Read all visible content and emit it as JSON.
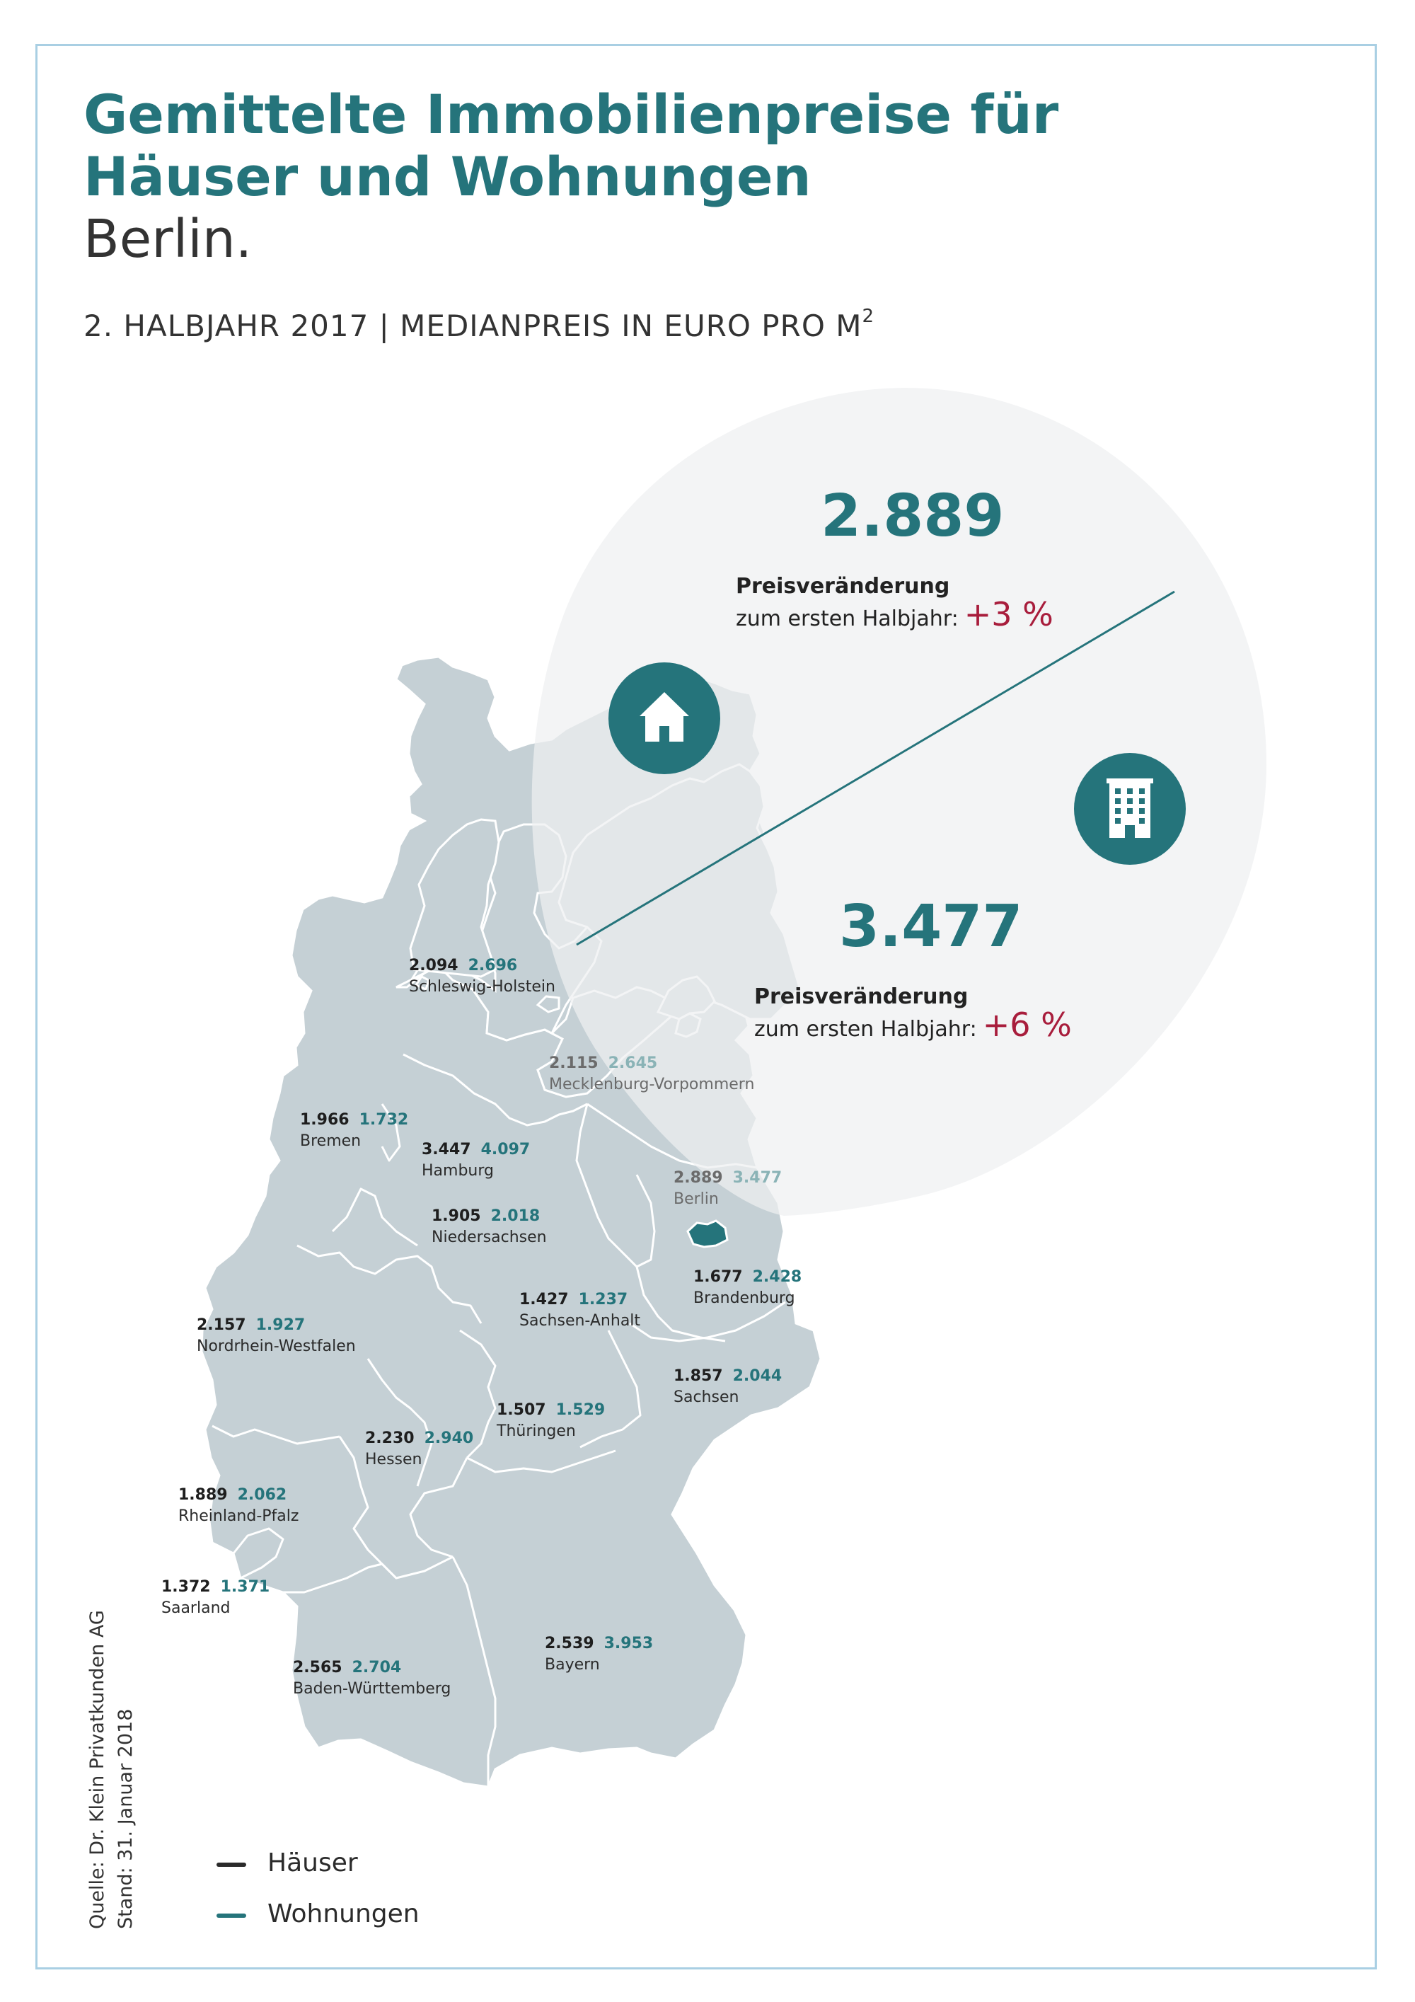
{
  "title": {
    "line1": "Gemittelte Immobilienpreise für",
    "line2": "Häuser und Wohnungen"
  },
  "city": "Berlin.",
  "subtitle": {
    "text": "2. HALBJAHR 2017 | MEDIANPREIS IN EURO PRO M",
    "superscript": "2"
  },
  "highlight": {
    "houses": {
      "value": "2.889",
      "change_label": "Preisveränderung",
      "change_sub": "zum ersten Halbjahr:",
      "change_pct": "+3 %",
      "icon": "house-icon"
    },
    "apartments": {
      "value": "3.477",
      "change_label": "Preisveränderung",
      "change_sub": "zum ersten Halbjahr:",
      "change_pct": "+6 %",
      "icon": "apartment-building-icon"
    }
  },
  "regions": [
    {
      "id": "schleswig-holstein",
      "name": "Schleswig-Holstein",
      "houses": "2.094",
      "apartments": "2.696"
    },
    {
      "id": "mecklenburg-vorpommern",
      "name": "Mecklenburg-Vorpommern",
      "houses": "2.115",
      "apartments": "2.645"
    },
    {
      "id": "bremen",
      "name": "Bremen",
      "houses": "1.966",
      "apartments": "1.732"
    },
    {
      "id": "hamburg",
      "name": "Hamburg",
      "houses": "3.447",
      "apartments": "4.097"
    },
    {
      "id": "berlin",
      "name": "Berlin",
      "houses": "2.889",
      "apartments": "3.477"
    },
    {
      "id": "niedersachsen",
      "name": "Niedersachsen",
      "houses": "1.905",
      "apartments": "2.018"
    },
    {
      "id": "brandenburg",
      "name": "Brandenburg",
      "houses": "1.677",
      "apartments": "2.428"
    },
    {
      "id": "sachsen-anhalt",
      "name": "Sachsen-Anhalt",
      "houses": "1.427",
      "apartments": "1.237"
    },
    {
      "id": "nordrhein-westfalen",
      "name": "Nordrhein-Westfalen",
      "houses": "2.157",
      "apartments": "1.927"
    },
    {
      "id": "sachsen",
      "name": "Sachsen",
      "houses": "1.857",
      "apartments": "2.044"
    },
    {
      "id": "thueringen",
      "name": "Thüringen",
      "houses": "1.507",
      "apartments": "1.529"
    },
    {
      "id": "hessen",
      "name": "Hessen",
      "houses": "2.230",
      "apartments": "2.940"
    },
    {
      "id": "rheinland-pfalz",
      "name": "Rheinland-Pfalz",
      "houses": "1.889",
      "apartments": "2.062"
    },
    {
      "id": "saarland",
      "name": "Saarland",
      "houses": "1.372",
      "apartments": "1.371"
    },
    {
      "id": "bayern",
      "name": "Bayern",
      "houses": "2.539",
      "apartments": "3.953"
    },
    {
      "id": "baden-wuerttemberg",
      "name": "Baden-Württemberg",
      "houses": "2.565",
      "apartments": "2.704"
    }
  ],
  "legend": [
    {
      "label": "Häuser",
      "color": "#2b2b2b"
    },
    {
      "label": "Wohnungen",
      "color": "#25747b"
    }
  ],
  "source": {
    "line1": "Quelle: Dr. Klein Privatkunden AG",
    "line2": "Stand: 31. Januar 2018"
  },
  "colors": {
    "accent": "#25747b",
    "change": "#a81d3c",
    "map_fill": "#c5d0d5",
    "bubble": "#f1f2f3",
    "frame": "#a9cfe3"
  }
}
